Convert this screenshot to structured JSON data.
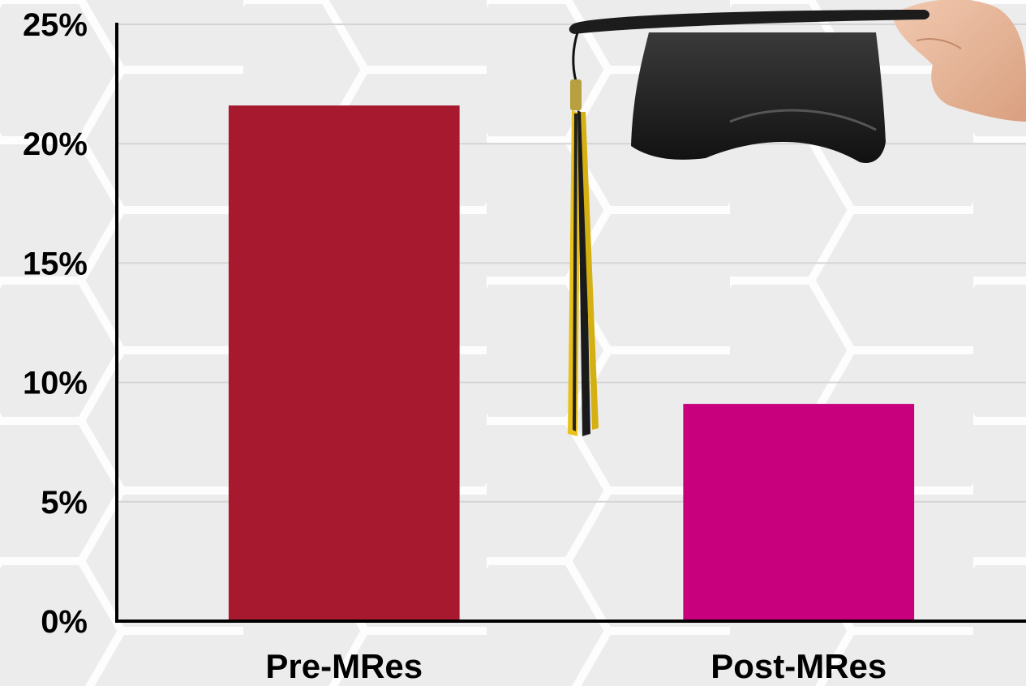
{
  "chart_data": {
    "type": "bar",
    "categories": [
      "Pre-MRes",
      "Post-MRes"
    ],
    "values": [
      21.6,
      9.1
    ],
    "bar_colors": [
      "#a6192e",
      "#c8007e"
    ],
    "ylim": [
      0,
      25
    ],
    "yticks": [
      0,
      5,
      10,
      15,
      20,
      25
    ],
    "ytick_labels": [
      "0%",
      "5%",
      "10%",
      "15%",
      "20%",
      "25%"
    ],
    "grid": true,
    "title": "",
    "xlabel": "",
    "ylabel": ""
  },
  "decoration": {
    "icon": "graduation-cap-icon"
  }
}
